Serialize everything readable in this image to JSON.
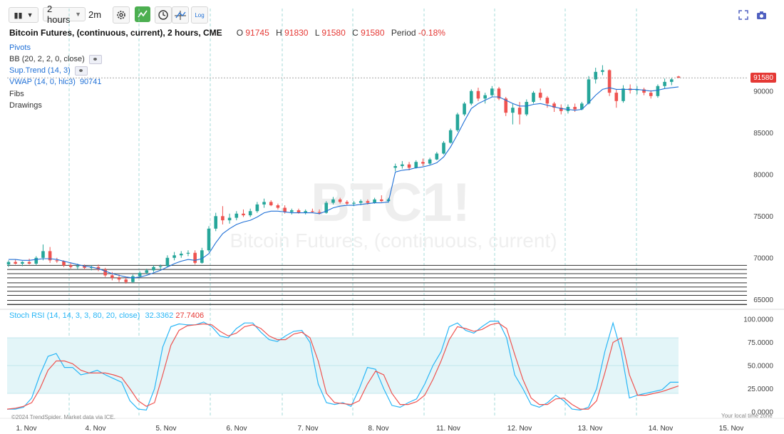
{
  "toolbar": {
    "timeframe": "2 hours",
    "bar_interval": "2m",
    "log_label": "Log",
    "icons": [
      "candles-icon",
      "chevron-down-icon",
      "gear-icon",
      "arrow-zigzag-icon",
      "clock-icon",
      "crosshair-icon",
      "log-scale-icon",
      "fullscreen-icon",
      "camera-icon"
    ]
  },
  "legend": {
    "title": "Bitcoin Futures, (continuous, current), 2 hours, CME",
    "open_label": "O",
    "open": "91745",
    "high_label": "H",
    "high": "91830",
    "low_label": "L",
    "low": "91580",
    "close_label": "C",
    "close": "91580",
    "period_label": "Period",
    "period": "-0.18%",
    "indicators": {
      "pivots": "Pivots",
      "bb": "BB (20, 2, 2, 0, close)",
      "supertrend": "Sup.Trend (14, 3)",
      "vwap": "VWAP (14, 0, hlc3)",
      "vwap_value": "90741",
      "fibs": "Fibs",
      "drawings": "Drawings"
    }
  },
  "watermark": {
    "symbol": "BTC1!",
    "name": "Bitcoin Futures, (continuous, current)"
  },
  "last_price": "91580",
  "stoch": {
    "label": "Stoch RSI (14, 14, 3, 3, 80, 20, close)",
    "k_value": "32.3362",
    "d_value": "27.7406"
  },
  "footnotes": {
    "copyright": "©2024 TrendSpider. Market data via ICE.",
    "timezone": "Your local time zone"
  },
  "colors": {
    "up": "#26a69a",
    "down": "#ef5350",
    "vwap": "#1e6fd6",
    "stoch_k": "#29b6f6",
    "stoch_d": "#ef5350",
    "band": "#e3f5f8"
  },
  "chart_data": [
    {
      "type": "candlestick",
      "ylim": [
        64000,
        97500
      ],
      "y_ticks": [
        "90000",
        "85000",
        "80000",
        "75000",
        "70000",
        "65000"
      ],
      "x_ticks": [
        "1. Nov",
        "4. Nov",
        "5. Nov",
        "6. Nov",
        "7. Nov",
        "8. Nov",
        "11. Nov",
        "12. Nov",
        "13. Nov",
        "14. Nov",
        "15. Nov"
      ],
      "candles": [
        [
          69200,
          69700,
          68900,
          69500
        ],
        [
          69500,
          69800,
          69200,
          69300
        ],
        [
          69300,
          69600,
          69000,
          69500
        ],
        [
          69500,
          69900,
          69200,
          69300
        ],
        [
          69300,
          70200,
          69100,
          70000
        ],
        [
          70000,
          71600,
          69700,
          70800
        ],
        [
          70800,
          71300,
          69400,
          69700
        ],
        [
          69700,
          70000,
          69400,
          69600
        ],
        [
          69600,
          69700,
          68900,
          69100
        ],
        [
          69100,
          69400,
          68700,
          68900
        ],
        [
          68900,
          69300,
          68600,
          69000
        ],
        [
          69000,
          69200,
          68600,
          68800
        ],
        [
          68800,
          69100,
          68500,
          68900
        ],
        [
          68900,
          69200,
          68400,
          68600
        ],
        [
          68600,
          68800,
          67700,
          67900
        ],
        [
          67900,
          68300,
          67300,
          67600
        ],
        [
          67600,
          68000,
          67100,
          67400
        ],
        [
          67400,
          67700,
          66900,
          67100
        ],
        [
          67100,
          68000,
          67000,
          67800
        ],
        [
          67800,
          68400,
          67600,
          68200
        ],
        [
          68200,
          68700,
          68000,
          68500
        ],
        [
          68500,
          69100,
          68300,
          68900
        ],
        [
          68900,
          69200,
          68600,
          69000
        ],
        [
          69000,
          70300,
          68900,
          70000
        ],
        [
          70000,
          70700,
          69700,
          70300
        ],
        [
          70300,
          70800,
          70000,
          70500
        ],
        [
          70500,
          70900,
          70200,
          70600
        ],
        [
          70600,
          70900,
          69200,
          69400
        ],
        [
          69400,
          71200,
          69300,
          70900
        ],
        [
          70900,
          73800,
          70700,
          73500
        ],
        [
          73500,
          75400,
          73200,
          75000
        ],
        [
          75000,
          76200,
          74000,
          74500
        ],
        [
          74500,
          75300,
          74100,
          74800
        ],
        [
          74800,
          75600,
          74500,
          75300
        ],
        [
          75300,
          75800,
          74900,
          75100
        ],
        [
          75100,
          75900,
          74900,
          75600
        ],
        [
          75600,
          76700,
          75400,
          76400
        ],
        [
          76400,
          77100,
          76000,
          76700
        ],
        [
          76700,
          76900,
          76200,
          76300
        ],
        [
          76300,
          76500,
          75800,
          76000
        ],
        [
          76000,
          76300,
          75300,
          75500
        ],
        [
          75500,
          75900,
          75200,
          75700
        ],
        [
          75700,
          75900,
          75300,
          75400
        ],
        [
          75400,
          75800,
          75200,
          75600
        ],
        [
          75600,
          75900,
          75400,
          75500
        ],
        [
          75500,
          75800,
          75200,
          75400
        ],
        [
          75400,
          76800,
          75300,
          76600
        ],
        [
          76600,
          77300,
          76400,
          77000
        ],
        [
          77000,
          77200,
          76500,
          76700
        ],
        [
          76700,
          76900,
          76300,
          76500
        ],
        [
          76500,
          76800,
          76200,
          76600
        ],
        [
          76600,
          77000,
          76300,
          76800
        ],
        [
          76800,
          77000,
          76400,
          76600
        ],
        [
          76600,
          77200,
          76500,
          77000
        ],
        [
          77000,
          77500,
          76700,
          76800
        ],
        [
          76800,
          77200,
          76600,
          77000
        ],
        [
          80800,
          81300,
          80400,
          81000
        ],
        [
          81000,
          81600,
          80700,
          81200
        ],
        [
          81200,
          81500,
          80500,
          80800
        ],
        [
          80800,
          81700,
          80700,
          81500
        ],
        [
          81500,
          81900,
          81000,
          81300
        ],
        [
          81300,
          82000,
          81100,
          81800
        ],
        [
          81800,
          82700,
          81700,
          82500
        ],
        [
          82500,
          84000,
          82400,
          83800
        ],
        [
          83800,
          85500,
          83700,
          85300
        ],
        [
          85300,
          87400,
          85100,
          87200
        ],
        [
          87200,
          88700,
          87000,
          88500
        ],
        [
          88500,
          90200,
          88300,
          90000
        ],
        [
          90000,
          90400,
          88800,
          89100
        ],
        [
          89100,
          89800,
          88500,
          89500
        ],
        [
          89500,
          90600,
          89300,
          90300
        ],
        [
          90300,
          90500,
          88900,
          89100
        ],
        [
          89100,
          89300,
          87000,
          87400
        ],
        [
          87400,
          88500,
          86000,
          88000
        ],
        [
          88000,
          88700,
          86000,
          87200
        ],
        [
          87200,
          89000,
          87000,
          88700
        ],
        [
          88700,
          90000,
          88500,
          89800
        ],
        [
          89800,
          90300,
          88900,
          89200
        ],
        [
          89200,
          89400,
          88000,
          88500
        ],
        [
          88500,
          88700,
          87500,
          88000
        ],
        [
          88000,
          88400,
          87200,
          87600
        ],
        [
          87600,
          88400,
          87300,
          88100
        ],
        [
          88100,
          88500,
          87500,
          87800
        ],
        [
          87800,
          88700,
          87700,
          88500
        ],
        [
          88500,
          91800,
          88400,
          91400
        ],
        [
          91400,
          92800,
          90900,
          92300
        ],
        [
          92300,
          93100,
          91900,
          92500
        ],
        [
          92500,
          92600,
          89400,
          89800
        ],
        [
          89800,
          90200,
          88000,
          88800
        ],
        [
          88800,
          90700,
          88600,
          90300
        ],
        [
          90300,
          90800,
          89700,
          90100
        ],
        [
          90100,
          90600,
          89600,
          90200
        ],
        [
          90200,
          90400,
          89500,
          89800
        ],
        [
          89800,
          90100,
          89100,
          89400
        ],
        [
          89400,
          90800,
          89200,
          90600
        ],
        [
          90600,
          91500,
          90300,
          91100
        ],
        [
          91100,
          91600,
          90700,
          91400
        ],
        [
          91745,
          91830,
          91580,
          91580
        ]
      ],
      "vwap": [
        69800,
        69800,
        69700,
        69700,
        69800,
        69900,
        69900,
        69800,
        69600,
        69400,
        69200,
        69000,
        68900,
        68700,
        68400,
        68100,
        67900,
        67700,
        67600,
        67700,
        67900,
        68200,
        68500,
        68900,
        69300,
        69600,
        69800,
        69700,
        69900,
        70500,
        71800,
        72900,
        73500,
        74000,
        74300,
        74500,
        74900,
        75400,
        75600,
        75600,
        75500,
        75400,
        75400,
        75400,
        75400,
        75300,
        75600,
        76000,
        76200,
        76300,
        76300,
        76400,
        76500,
        76600,
        76600,
        76700,
        80300,
        80500,
        80600,
        80800,
        80900,
        81100,
        81400,
        82100,
        83300,
        84800,
        86400,
        87900,
        88500,
        88900,
        89300,
        89300,
        88900,
        88500,
        88200,
        88200,
        88400,
        88500,
        88300,
        88100,
        87900,
        87800,
        87700,
        87800,
        88600,
        89500,
        90200,
        90400,
        90200,
        90200,
        90200,
        90200,
        90100,
        90000,
        90100,
        90300,
        90400,
        90500
      ]
    },
    {
      "type": "line",
      "ylim": [
        0,
        100
      ],
      "y_ticks": [
        "100.0000",
        "75.0000",
        "50.0000",
        "25.0000",
        "0.0000"
      ],
      "bands": [
        20,
        80
      ],
      "series": [
        {
          "name": "K",
          "values": [
            3,
            3,
            5,
            15,
            40,
            60,
            63,
            48,
            48,
            40,
            42,
            45,
            40,
            36,
            32,
            12,
            3,
            2,
            25,
            70,
            92,
            95,
            94,
            94,
            97,
            92,
            82,
            80,
            90,
            96,
            96,
            86,
            78,
            76,
            82,
            87,
            88,
            75,
            30,
            10,
            8,
            10,
            6,
            25,
            48,
            46,
            25,
            7,
            5,
            10,
            14,
            30,
            50,
            65,
            92,
            96,
            88,
            85,
            92,
            98,
            98,
            80,
            40,
            25,
            8,
            5,
            10,
            18,
            12,
            3,
            2,
            5,
            25,
            65,
            96,
            65,
            15,
            18,
            20,
            22,
            24,
            32,
            32
          ]
        },
        {
          "name": "D",
          "values": [
            3,
            4,
            6,
            10,
            25,
            45,
            55,
            55,
            52,
            45,
            42,
            42,
            42,
            40,
            37,
            25,
            12,
            6,
            10,
            40,
            72,
            88,
            93,
            94,
            95,
            94,
            87,
            82,
            85,
            92,
            94,
            90,
            82,
            78,
            78,
            84,
            86,
            80,
            55,
            20,
            10,
            9,
            8,
            12,
            30,
            44,
            40,
            20,
            8,
            8,
            11,
            18,
            35,
            55,
            78,
            92,
            90,
            87,
            89,
            94,
            96,
            90,
            62,
            35,
            15,
            8,
            8,
            14,
            15,
            8,
            3,
            3,
            12,
            42,
            75,
            80,
            40,
            18,
            18,
            20,
            22,
            25,
            28
          ]
        }
      ]
    }
  ]
}
